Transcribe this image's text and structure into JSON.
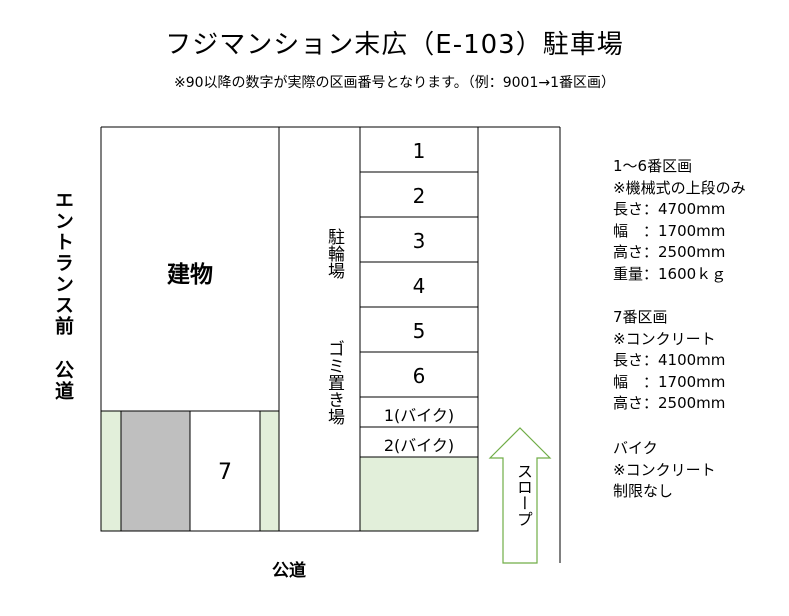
{
  "title": "フジマンション末広（E-103）駐車場",
  "note": "※90以降の数字が実際の区画番号となります。（例：9001→1番区画）",
  "labels": {
    "entrance": "エントランス前",
    "road_left": "公道",
    "road_bottom": "公道",
    "building": "建物",
    "bike_parking": "駐輪場",
    "garbage": "ゴミ置き場",
    "slope": "スロープ"
  },
  "lots": [
    "1",
    "2",
    "3",
    "4",
    "5",
    "6"
  ],
  "bike_lots": [
    "1(バイク)",
    "2(バイク)"
  ],
  "lot7": "7",
  "info": {
    "group1": [
      "1～6番区画",
      "※機械式の上段のみ",
      "長さ：4700mm",
      "幅　：1700mm",
      "高さ：2500mm",
      "重量：1600ｋｇ"
    ],
    "group2": [
      "7番区画",
      "※コンクリート",
      "長さ：4100mm",
      "幅　：1700mm",
      "高さ：2500mm"
    ],
    "group3": [
      "バイク",
      "※コンクリート",
      "制限なし"
    ]
  },
  "colors": {
    "green_area": "#e2efda",
    "gray_area": "#bfbfbf",
    "arrow_stroke": "#70ad47",
    "line": "#000000"
  }
}
